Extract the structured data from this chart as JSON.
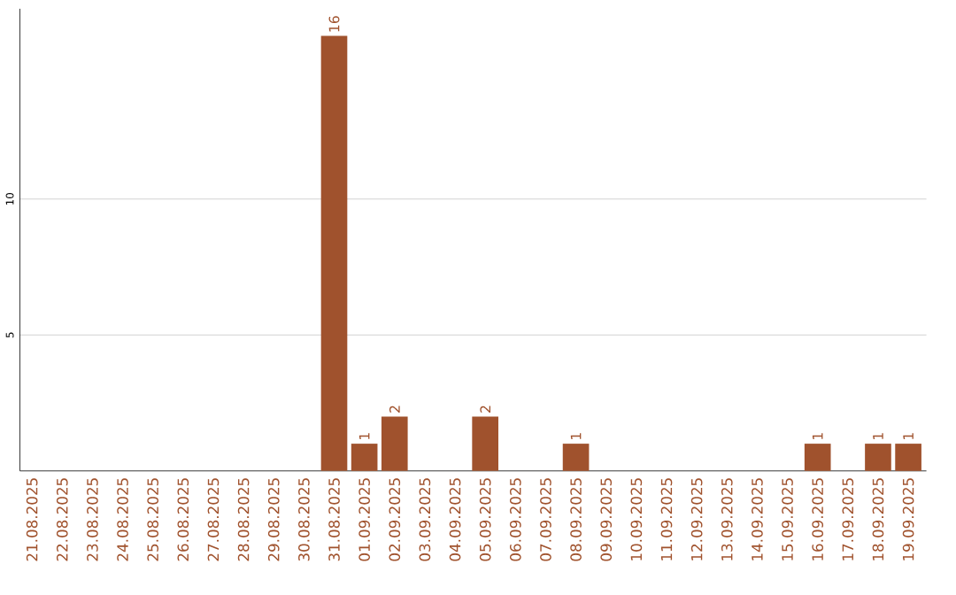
{
  "chart_data": {
    "type": "bar",
    "color": "#a0522d",
    "categories": [
      "21.08.2025",
      "22.08.2025",
      "23.08.2025",
      "24.08.2025",
      "25.08.2025",
      "26.08.2025",
      "27.08.2025",
      "28.08.2025",
      "29.08.2025",
      "30.08.2025",
      "31.08.2025",
      "01.09.2025",
      "02.09.2025",
      "03.09.2025",
      "04.09.2025",
      "05.09.2025",
      "06.09.2025",
      "07.09.2025",
      "08.09.2025",
      "09.09.2025",
      "10.09.2025",
      "11.09.2025",
      "12.09.2025",
      "13.09.2025",
      "14.09.2025",
      "15.09.2025",
      "16.09.2025",
      "17.09.2025",
      "18.09.2025",
      "19.09.2025"
    ],
    "values": [
      0,
      0,
      0,
      0,
      0,
      0,
      0,
      0,
      0,
      0,
      16,
      1,
      2,
      0,
      0,
      2,
      0,
      0,
      1,
      0,
      0,
      0,
      0,
      0,
      0,
      0,
      1,
      0,
      1,
      1
    ],
    "value_labels": [
      null,
      null,
      null,
      null,
      null,
      null,
      null,
      null,
      null,
      null,
      "16",
      "1",
      "2",
      null,
      null,
      "2",
      null,
      null,
      "1",
      null,
      null,
      null,
      null,
      null,
      null,
      null,
      "1",
      null,
      "1",
      "1"
    ],
    "ylim": [
      0,
      17
    ],
    "yticks": [
      5,
      10
    ],
    "grid": "y"
  }
}
